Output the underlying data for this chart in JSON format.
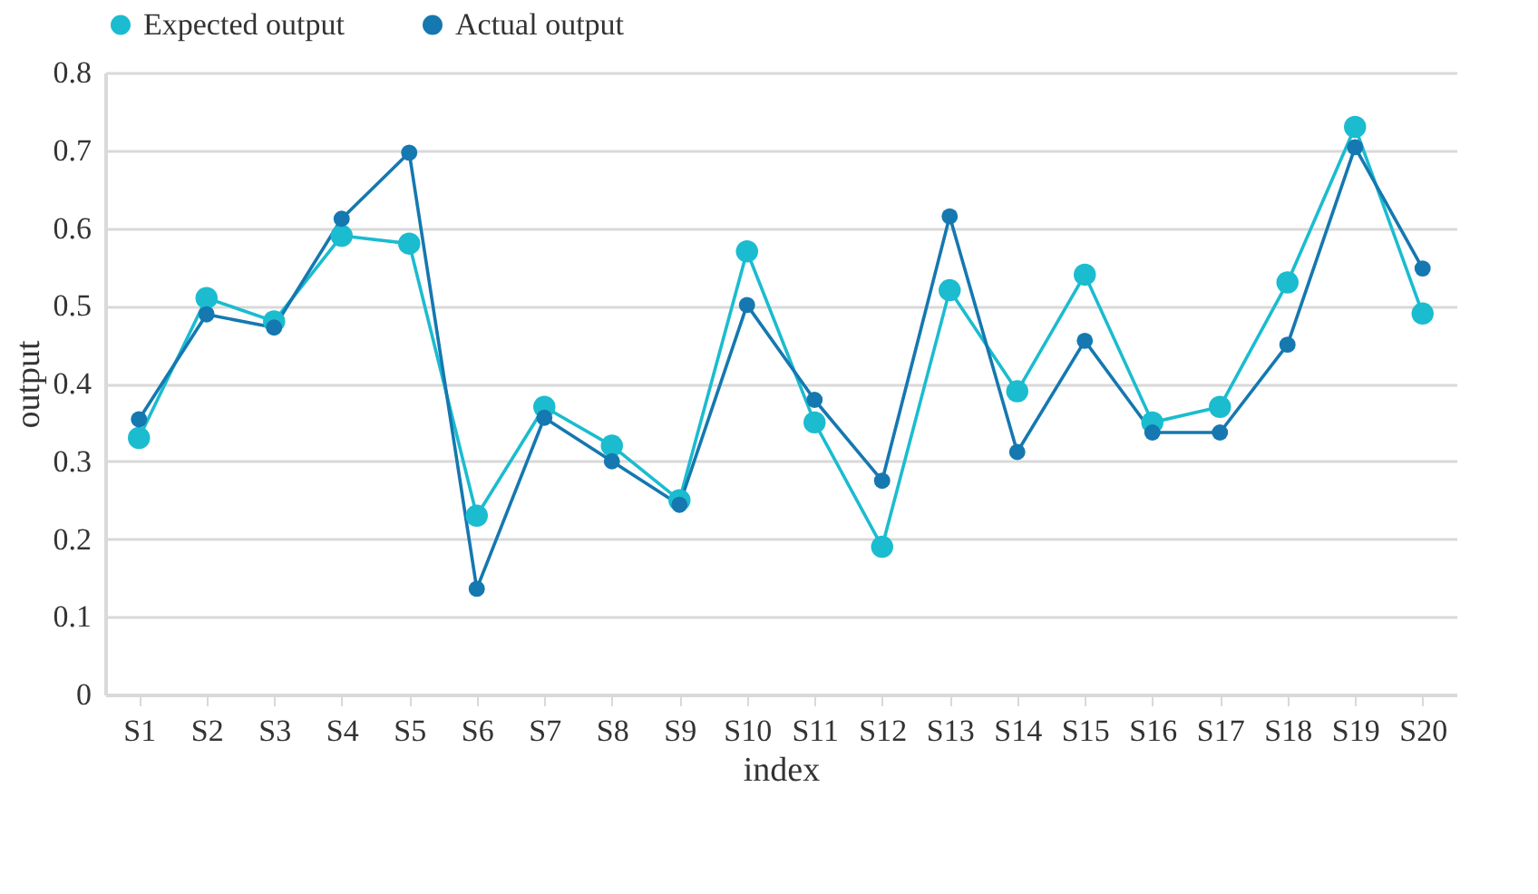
{
  "chart_data": {
    "type": "line",
    "xlabel": "index",
    "ylabel": "output",
    "categories": [
      "S1",
      "S2",
      "S3",
      "S4",
      "S5",
      "S6",
      "S7",
      "S8",
      "S9",
      "S10",
      "S11",
      "S12",
      "S13",
      "S14",
      "S15",
      "S16",
      "S17",
      "S18",
      "S19",
      "S20"
    ],
    "series": [
      {
        "name": "Expected output",
        "color": "#1bbccf",
        "values": [
          0.33,
          0.51,
          0.48,
          0.59,
          0.58,
          0.23,
          0.37,
          0.32,
          0.25,
          0.57,
          0.35,
          0.19,
          0.52,
          0.39,
          0.54,
          0.35,
          0.37,
          0.53,
          0.73,
          0.49
        ]
      },
      {
        "name": "Actual output",
        "color": "#1578b0",
        "values": [
          0.354,
          0.489,
          0.472,
          0.612,
          0.697,
          0.136,
          0.356,
          0.3,
          0.244,
          0.501,
          0.379,
          0.275,
          0.615,
          0.312,
          0.455,
          0.337,
          0.337,
          0.45,
          0.704,
          0.548
        ]
      }
    ],
    "ylim": [
      0,
      0.8
    ],
    "yticks": [
      0,
      0.1,
      0.2,
      0.3,
      0.4,
      0.5,
      0.6,
      0.7,
      0.8
    ],
    "grid": "y",
    "legend": "top",
    "marker": "circle",
    "line_style": "solid"
  }
}
